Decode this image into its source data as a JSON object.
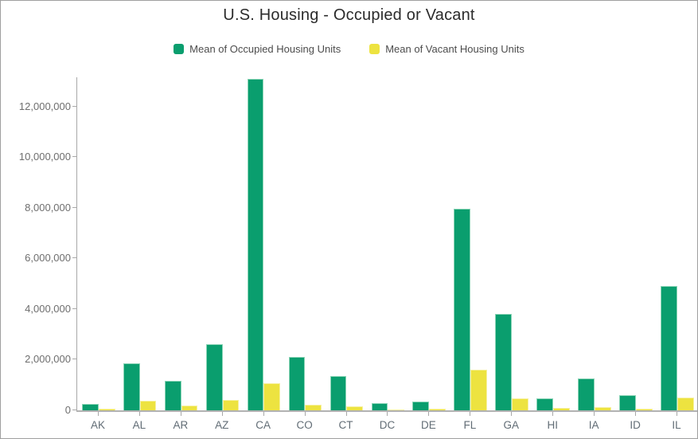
{
  "chart_data": {
    "type": "bar",
    "title": "U.S. Housing - Occupied or Vacant",
    "categories": [
      "AK",
      "AL",
      "AR",
      "AZ",
      "CA",
      "CO",
      "CT",
      "DC",
      "DE",
      "FL",
      "GA",
      "HI",
      "IA",
      "ID",
      "IL"
    ],
    "series": [
      {
        "name": "Mean of Occupied Housing Units",
        "color": "#0a9e6e",
        "border_color": "#8bd4b6",
        "values": [
          250000,
          1860000,
          1150000,
          2600000,
          13100000,
          2100000,
          1360000,
          270000,
          340000,
          7950000,
          3820000,
          460000,
          1270000,
          610000,
          4900000
        ]
      },
      {
        "name": "Mean of Vacant Housing Units",
        "color": "#ede340",
        "border_color": "#f6f0a0",
        "values": [
          60000,
          370000,
          190000,
          400000,
          1080000,
          220000,
          150000,
          40000,
          65000,
          1600000,
          480000,
          90000,
          140000,
          80000,
          490000
        ]
      }
    ],
    "xlabel": "",
    "ylabel": "",
    "ylim": [
      0,
      13150000
    ],
    "yticks": [
      0,
      2000000,
      4000000,
      6000000,
      8000000,
      10000000,
      12000000
    ],
    "grid": false,
    "legend_position": "top-center",
    "axis_color": "#a8a8a8",
    "label_color": "#626d76"
  }
}
